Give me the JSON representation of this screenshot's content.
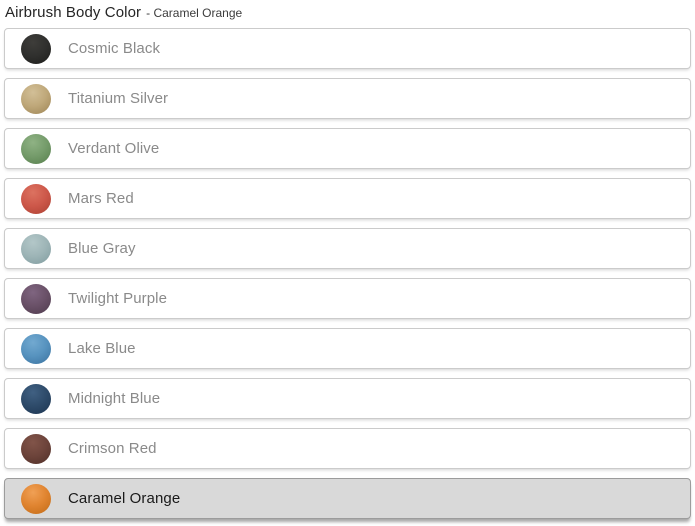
{
  "header": {
    "title": "Airbrush Body Color",
    "subtitle": "- Caramel Orange"
  },
  "colors": {
    "row_background": "#ffffff",
    "row_border": "#cbcbcb",
    "selected_background": "#d9d9d9",
    "selected_border": "#9c9c9c",
    "label": "#8a8a8a",
    "label_selected": "#1a1a1a"
  },
  "options": [
    {
      "label": "Cosmic Black",
      "selected": false,
      "swatch": {
        "light": "#3e3d3a",
        "base": "#30302e",
        "dark": "#1c1c1a"
      }
    },
    {
      "label": "Titanium Silver",
      "selected": false,
      "swatch": {
        "light": "#d2bf97",
        "base": "#bfa87a",
        "dark": "#9d8454"
      }
    },
    {
      "label": "Verdant Olive",
      "selected": false,
      "swatch": {
        "light": "#8fb284",
        "base": "#759c6b",
        "dark": "#567e4c"
      }
    },
    {
      "label": "Mars Red",
      "selected": false,
      "swatch": {
        "light": "#dc7260",
        "base": "#cd584a",
        "dark": "#ab4032"
      }
    },
    {
      "label": "Blue Gray",
      "selected": false,
      "swatch": {
        "light": "#b3c7c8",
        "base": "#9eb5b7",
        "dark": "#7f9b9e"
      }
    },
    {
      "label": "Twilight Purple",
      "selected": false,
      "swatch": {
        "light": "#7f6580",
        "base": "#6a5168",
        "dark": "#4e3a4c"
      }
    },
    {
      "label": "Lake Blue",
      "selected": false,
      "swatch": {
        "light": "#72a9d0",
        "base": "#5793bf",
        "dark": "#3a719e"
      }
    },
    {
      "label": "Midnight Blue",
      "selected": false,
      "swatch": {
        "light": "#406082",
        "base": "#2e4b6a",
        "dark": "#1c3450"
      }
    },
    {
      "label": "Crimson Red",
      "selected": false,
      "swatch": {
        "light": "#815449",
        "base": "#6d443b",
        "dark": "#4f2e27"
      }
    },
    {
      "label": "Caramel Orange",
      "selected": true,
      "swatch": {
        "light": "#f0a055",
        "base": "#e08430",
        "dark": "#c06a16"
      }
    }
  ]
}
